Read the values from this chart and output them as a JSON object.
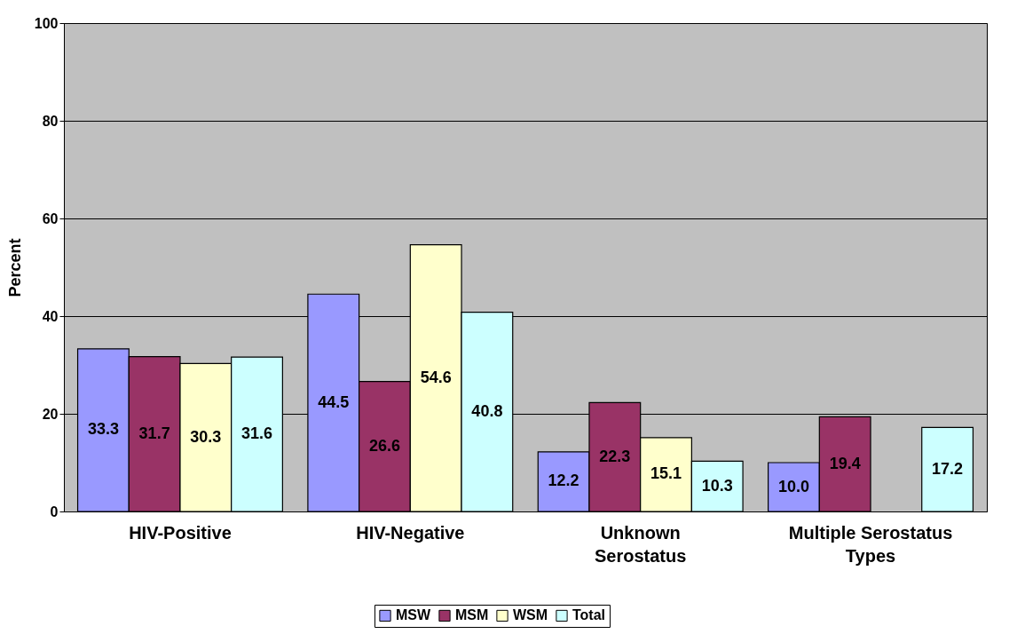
{
  "chart_data": {
    "type": "bar",
    "ylabel": "Percent",
    "categories": [
      "HIV-Positive",
      "HIV-Negative",
      "Unknown Serostatus",
      "Multiple Serostatus Types"
    ],
    "series": [
      {
        "name": "MSW",
        "color": "#9999ff",
        "values": [
          33.3,
          44.5,
          12.2,
          10.0
        ],
        "value_labels": [
          "33.3",
          "44.5",
          "12.2",
          "10.0"
        ]
      },
      {
        "name": "MSM",
        "color": "#993366",
        "values": [
          31.7,
          26.6,
          22.3,
          19.4
        ],
        "value_labels": [
          "31.7",
          "26.6",
          "22.3",
          "19.4"
        ]
      },
      {
        "name": "WSM",
        "color": "#ffffcc",
        "values": [
          30.3,
          54.6,
          15.1,
          null
        ],
        "value_labels": [
          "30.3",
          "54.6",
          "15.1",
          null
        ]
      },
      {
        "name": "Total",
        "color": "#ccffff",
        "values": [
          31.6,
          40.8,
          10.3,
          17.2
        ],
        "value_labels": [
          "31.6",
          "40.8",
          "10.3",
          "17.2"
        ]
      }
    ],
    "ylim": [
      0,
      100
    ],
    "yticks": [
      0,
      20,
      40,
      60,
      80,
      100
    ],
    "grid": "y",
    "legend": "bottom"
  }
}
